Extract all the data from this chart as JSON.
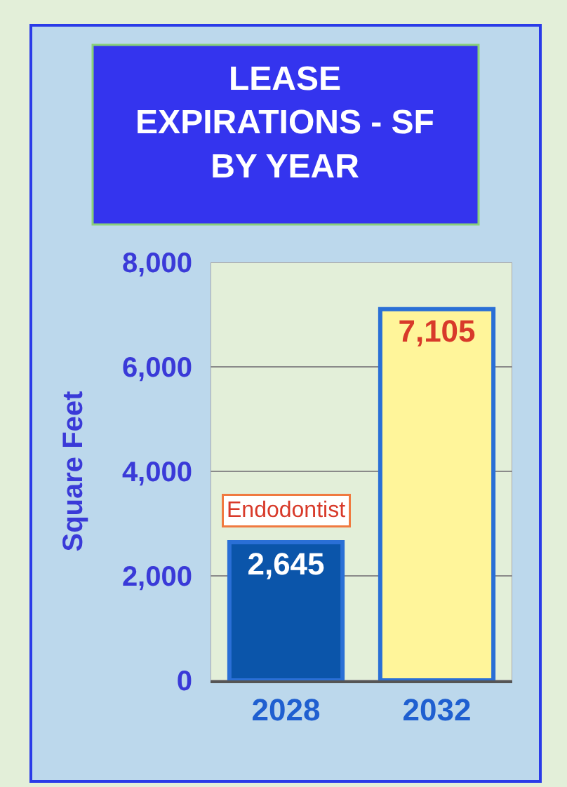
{
  "chart_data": {
    "type": "bar",
    "title": "LEASE\nEXPIRATIONS - SF\nBY YEAR",
    "ylabel": "Square Feet",
    "categories": [
      "2028",
      "2032"
    ],
    "values": [
      2645,
      7105
    ],
    "colors": [
      "#0b55aa",
      "#fff59a"
    ],
    "ylim": [
      0,
      8000
    ],
    "yticks": [
      {
        "value": 0,
        "label": "0"
      },
      {
        "value": 2000,
        "label": "2,000"
      },
      {
        "value": 4000,
        "label": "4,000"
      },
      {
        "value": 6000,
        "label": "6,000"
      },
      {
        "value": 8000,
        "label": "8,000"
      }
    ],
    "grid": "y",
    "value_labels": [
      "2,645",
      "7,105"
    ],
    "legend": false,
    "annotations": [
      {
        "text": "Endodontist",
        "x": "2028",
        "y": 2645
      }
    ]
  }
}
